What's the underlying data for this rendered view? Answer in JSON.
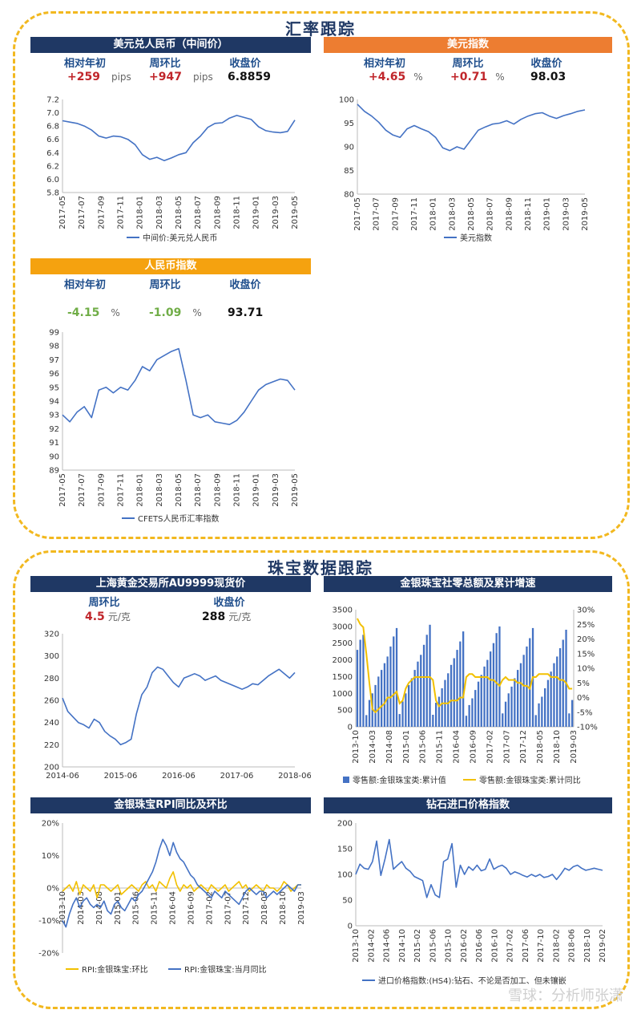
{
  "sections": {
    "fx": "汇率跟踪",
    "jewelry": "珠宝数据跟踪"
  },
  "watermark": "雪球：分析师张潇",
  "colors": {
    "navy": "#1f3864",
    "orange": "#ed7d31",
    "gold": "#f5a20f",
    "line_blue": "#4472c4",
    "line_gold": "#f2c000",
    "frame": "#f2b81f"
  },
  "usdcny": {
    "title": "美元兑人民币（中间价）",
    "stats": [
      {
        "label": "相对年初",
        "value": "+259",
        "unit": "pips"
      },
      {
        "label": "周环比",
        "value": "+947",
        "unit": "pips"
      },
      {
        "label": "收盘价",
        "value": "6.8859",
        "unit": ""
      }
    ]
  },
  "dxy": {
    "title": "美元指数",
    "stats": [
      {
        "label": "相对年初",
        "value": "+4.65",
        "unit": "%"
      },
      {
        "label": "周环比",
        "value": "+0.71",
        "unit": "%"
      },
      {
        "label": "收盘价",
        "value": "98.03",
        "unit": ""
      }
    ]
  },
  "cfets": {
    "title": "人民币指数",
    "stats": [
      {
        "label": "相对年初",
        "value": "-4.15",
        "unit": "%"
      },
      {
        "label": "周环比",
        "value": "-1.09",
        "unit": "%"
      },
      {
        "label": "收盘价",
        "value": "93.71",
        "unit": ""
      }
    ]
  },
  "gold": {
    "title": "上海黄金交易所AU9999现货价",
    "stats": [
      {
        "label": "周环比",
        "value": "4.5",
        "unit": "元/克"
      },
      {
        "label": "收盘价",
        "value": "288",
        "unit": "元/克"
      }
    ]
  },
  "retail": {
    "title": "金银珠宝社零总额及累计增速"
  },
  "rpi": {
    "title": "金银珠宝RPI同比及环比"
  },
  "diamond": {
    "title": "钻石进口价格指数"
  },
  "chart_data": [
    {
      "id": "usdcny",
      "type": "line",
      "x_ticks": [
        "2017-05",
        "2017-07",
        "2017-09",
        "2017-11",
        "2018-01",
        "2018-03",
        "2018-05",
        "2018-07",
        "2018-09",
        "2018-11",
        "2019-01",
        "2019-03",
        "2019-05"
      ],
      "y_ticks": [
        "7.2",
        "7.0",
        "6.8",
        "6.6",
        "6.4",
        "6.2",
        "6.0",
        "5.8"
      ],
      "ylim": [
        5.8,
        7.2
      ],
      "series": [
        {
          "name": "中间价:美元兑人民币",
          "values": [
            6.88,
            6.86,
            6.84,
            6.8,
            6.74,
            6.65,
            6.62,
            6.65,
            6.64,
            6.6,
            6.52,
            6.37,
            6.3,
            6.33,
            6.28,
            6.32,
            6.37,
            6.4,
            6.55,
            6.65,
            6.78,
            6.84,
            6.85,
            6.92,
            6.96,
            6.93,
            6.9,
            6.79,
            6.73,
            6.71,
            6.7,
            6.72,
            6.89
          ]
        }
      ]
    },
    {
      "id": "dxy",
      "type": "line",
      "x_ticks": [
        "2017-05",
        "2017-07",
        "2017-09",
        "2017-11",
        "2018-01",
        "2018-03",
        "2018-05",
        "2018-07",
        "2018-09",
        "2018-11",
        "2019-01",
        "2019-03",
        "2019-05"
      ],
      "y_ticks": [
        "100",
        "95",
        "90",
        "85",
        "80"
      ],
      "ylim": [
        80,
        100
      ],
      "series": [
        {
          "name": "美元指数",
          "values": [
            99.0,
            97.5,
            96.5,
            95.2,
            93.5,
            92.5,
            92.0,
            93.8,
            94.5,
            93.8,
            93.2,
            92.0,
            89.8,
            89.2,
            90.0,
            89.5,
            91.5,
            93.5,
            94.2,
            94.8,
            95.0,
            95.5,
            94.8,
            95.8,
            96.5,
            97.0,
            97.2,
            96.5,
            96.0,
            96.6,
            97.0,
            97.5,
            97.8
          ]
        }
      ]
    },
    {
      "id": "cfets",
      "type": "line",
      "x_ticks": [
        "2017-05",
        "2017-07",
        "2017-09",
        "2017-11",
        "2018-01",
        "2018-03",
        "2018-05",
        "2018-07",
        "2018-09",
        "2018-11",
        "2019-01",
        "2019-03",
        "2019-05"
      ],
      "y_ticks": [
        "99",
        "98",
        "97",
        "96",
        "95",
        "94",
        "93",
        "92",
        "91",
        "90",
        "89"
      ],
      "ylim": [
        89,
        99
      ],
      "series": [
        {
          "name": "CFETS人民币汇率指数",
          "values": [
            93.0,
            92.5,
            93.2,
            93.6,
            92.8,
            94.8,
            95.0,
            94.6,
            95.0,
            94.8,
            95.5,
            96.5,
            96.2,
            97.0,
            97.3,
            97.6,
            97.8,
            95.5,
            93.0,
            92.8,
            93.0,
            92.5,
            92.4,
            92.3,
            92.6,
            93.2,
            94.0,
            94.8,
            95.2,
            95.4,
            95.6,
            95.5,
            94.8
          ]
        }
      ]
    },
    {
      "id": "gold",
      "type": "line",
      "x_ticks": [
        "2014-06",
        "2015-06",
        "2016-06",
        "2017-06",
        "2018-06"
      ],
      "y_ticks": [
        "320",
        "300",
        "280",
        "260",
        "240",
        "220",
        "200"
      ],
      "ylim": [
        200,
        320
      ],
      "series": [
        {
          "name": "AU9999",
          "values": [
            262,
            250,
            245,
            240,
            238,
            235,
            243,
            240,
            232,
            228,
            225,
            220,
            222,
            225,
            248,
            265,
            272,
            285,
            290,
            288,
            282,
            276,
            272,
            280,
            282,
            284,
            282,
            278,
            280,
            282,
            278,
            276,
            274,
            272,
            270,
            272,
            275,
            274,
            278,
            282,
            285,
            288,
            284,
            280,
            285
          ]
        }
      ]
    },
    {
      "id": "retail",
      "type": "bar-line",
      "x_ticks": [
        "2013-10",
        "2014-03",
        "2014-08",
        "2015-01",
        "2015-06",
        "2015-11",
        "2016-04",
        "2016-09",
        "2017-02",
        "2017-07",
        "2017-12",
        "2018-05",
        "2018-10",
        "2019-03"
      ],
      "y_ticks": [
        "3500",
        "3000",
        "2500",
        "2000",
        "1500",
        "1000",
        "500",
        "0"
      ],
      "y2_ticks": [
        "30%",
        "25%",
        "20%",
        "15%",
        "10%",
        "5%",
        "0%",
        "-5%",
        "-10%"
      ],
      "ylim": [
        0,
        3500
      ],
      "y2lim": [
        -10,
        30
      ],
      "series": [
        {
          "name": "零售额:金银珠宝类:累计值",
          "values": [
            2300,
            2600,
            2750,
            350,
            800,
            1000,
            1250,
            1500,
            1700,
            1900,
            2100,
            2400,
            2700,
            2950,
            380,
            760,
            1000,
            1250,
            1450,
            1700,
            1950,
            2150,
            2450,
            2750,
            3050,
            360,
            720,
            900,
            1150,
            1400,
            1600,
            1850,
            2050,
            2300,
            2550,
            2850,
            330,
            650,
            850,
            1100,
            1350,
            1550,
            1800,
            2000,
            2250,
            2500,
            2800,
            3000,
            400,
            750,
            1000,
            1200,
            1450,
            1700,
            1900,
            2150,
            2400,
            2650,
            2950,
            350,
            700,
            900,
            1150,
            1400,
            1650,
            1900,
            2100,
            2350,
            2600,
            2900,
            400,
            800
          ]
        },
        {
          "name": "零售额:金银珠宝类:累计同比",
          "values": [
            27,
            25,
            24,
            15,
            5,
            -4,
            -5,
            -4,
            -3,
            -2,
            0,
            0,
            1,
            2,
            -2,
            -1,
            3,
            5,
            6,
            7,
            7,
            7,
            7,
            7,
            7,
            6,
            -1,
            -3,
            -2,
            -2,
            -2,
            -1,
            -1,
            -1,
            0,
            0,
            7,
            8,
            8,
            7,
            7,
            7,
            7,
            7,
            6,
            6,
            5,
            4,
            6,
            7,
            6,
            6,
            6,
            5,
            5,
            4,
            4,
            3,
            7,
            7,
            8,
            8,
            8,
            8,
            7,
            7,
            7,
            6,
            6,
            5,
            3,
            3
          ]
        }
      ]
    },
    {
      "id": "rpi",
      "type": "line",
      "x_ticks": [
        "2013-10",
        "2014-03",
        "2014-08",
        "2015-01",
        "2015-06",
        "2015-11",
        "2016-04",
        "2016-09",
        "2017-02",
        "2017-07",
        "2017-12",
        "2018-05",
        "2018-10",
        "2019-03"
      ],
      "y_ticks": [
        "20%",
        "10%",
        "0%",
        "-10%",
        "-20%"
      ],
      "ylim": [
        -20,
        20
      ],
      "series": [
        {
          "name": "RPI:金银珠宝:环比",
          "values": [
            -1,
            0,
            1,
            -1,
            2,
            -2,
            1,
            0,
            -1,
            1,
            -3,
            1,
            1,
            0,
            -1,
            0,
            1,
            -2,
            -1,
            0,
            1,
            0,
            -1,
            1,
            2,
            0,
            1,
            -1,
            2,
            1,
            0,
            3,
            5,
            1,
            -1,
            1,
            0,
            1,
            -1,
            0,
            1,
            0,
            -1,
            1,
            0,
            -1,
            0,
            1,
            -1,
            0,
            1,
            2,
            0,
            1,
            -1,
            0,
            1,
            0,
            -1,
            1,
            0,
            0,
            -1,
            0,
            2,
            1,
            -1,
            0,
            1,
            1
          ]
        },
        {
          "name": "RPI:金银珠宝:当月同比",
          "values": [
            -10,
            -12,
            -8,
            -5,
            -3,
            -6,
            -4,
            -3,
            -5,
            -6,
            -5,
            -6,
            -4,
            -7,
            -8,
            -5,
            -4,
            -6,
            -7,
            -5,
            -3,
            -4,
            -2,
            -1,
            1,
            3,
            5,
            8,
            12,
            15,
            13,
            10,
            14,
            11,
            9,
            8,
            6,
            4,
            3,
            1,
            0,
            -1,
            -2,
            -3,
            -1,
            -2,
            -3,
            -1,
            -2,
            -3,
            -4,
            -5,
            -3,
            -1,
            0,
            -1,
            -2,
            -1,
            -1,
            -3,
            -2,
            -1,
            -2,
            -1,
            0,
            1,
            0,
            -1,
            1,
            1
          ]
        }
      ]
    },
    {
      "id": "diamond",
      "type": "line",
      "x_ticks": [
        "2013-10",
        "2014-02",
        "2014-06",
        "2014-10",
        "2015-02",
        "2015-06",
        "2015-10",
        "2016-02",
        "2016-06",
        "2016-10",
        "2017-02",
        "2017-06",
        "2017-10",
        "2018-02",
        "2018-06",
        "2018-10",
        "2019-02"
      ],
      "y_ticks": [
        "200",
        "150",
        "100",
        "50",
        "0"
      ],
      "ylim": [
        0,
        200
      ],
      "series": [
        {
          "name": "进口价格指数:(HS4):钻石、不论是否加工、但未镶嵌",
          "values": [
            100,
            120,
            112,
            110,
            125,
            165,
            98,
            130,
            168,
            110,
            118,
            125,
            112,
            106,
            96,
            92,
            88,
            55,
            80,
            60,
            55,
            125,
            130,
            160,
            75,
            118,
            100,
            115,
            108,
            118,
            107,
            110,
            130,
            110,
            115,
            118,
            112,
            100,
            105,
            102,
            98,
            95,
            100,
            96,
            100,
            94,
            96,
            100,
            90,
            100,
            112,
            108,
            115,
            118,
            112,
            108,
            110,
            112,
            110,
            108
          ]
        }
      ]
    }
  ]
}
